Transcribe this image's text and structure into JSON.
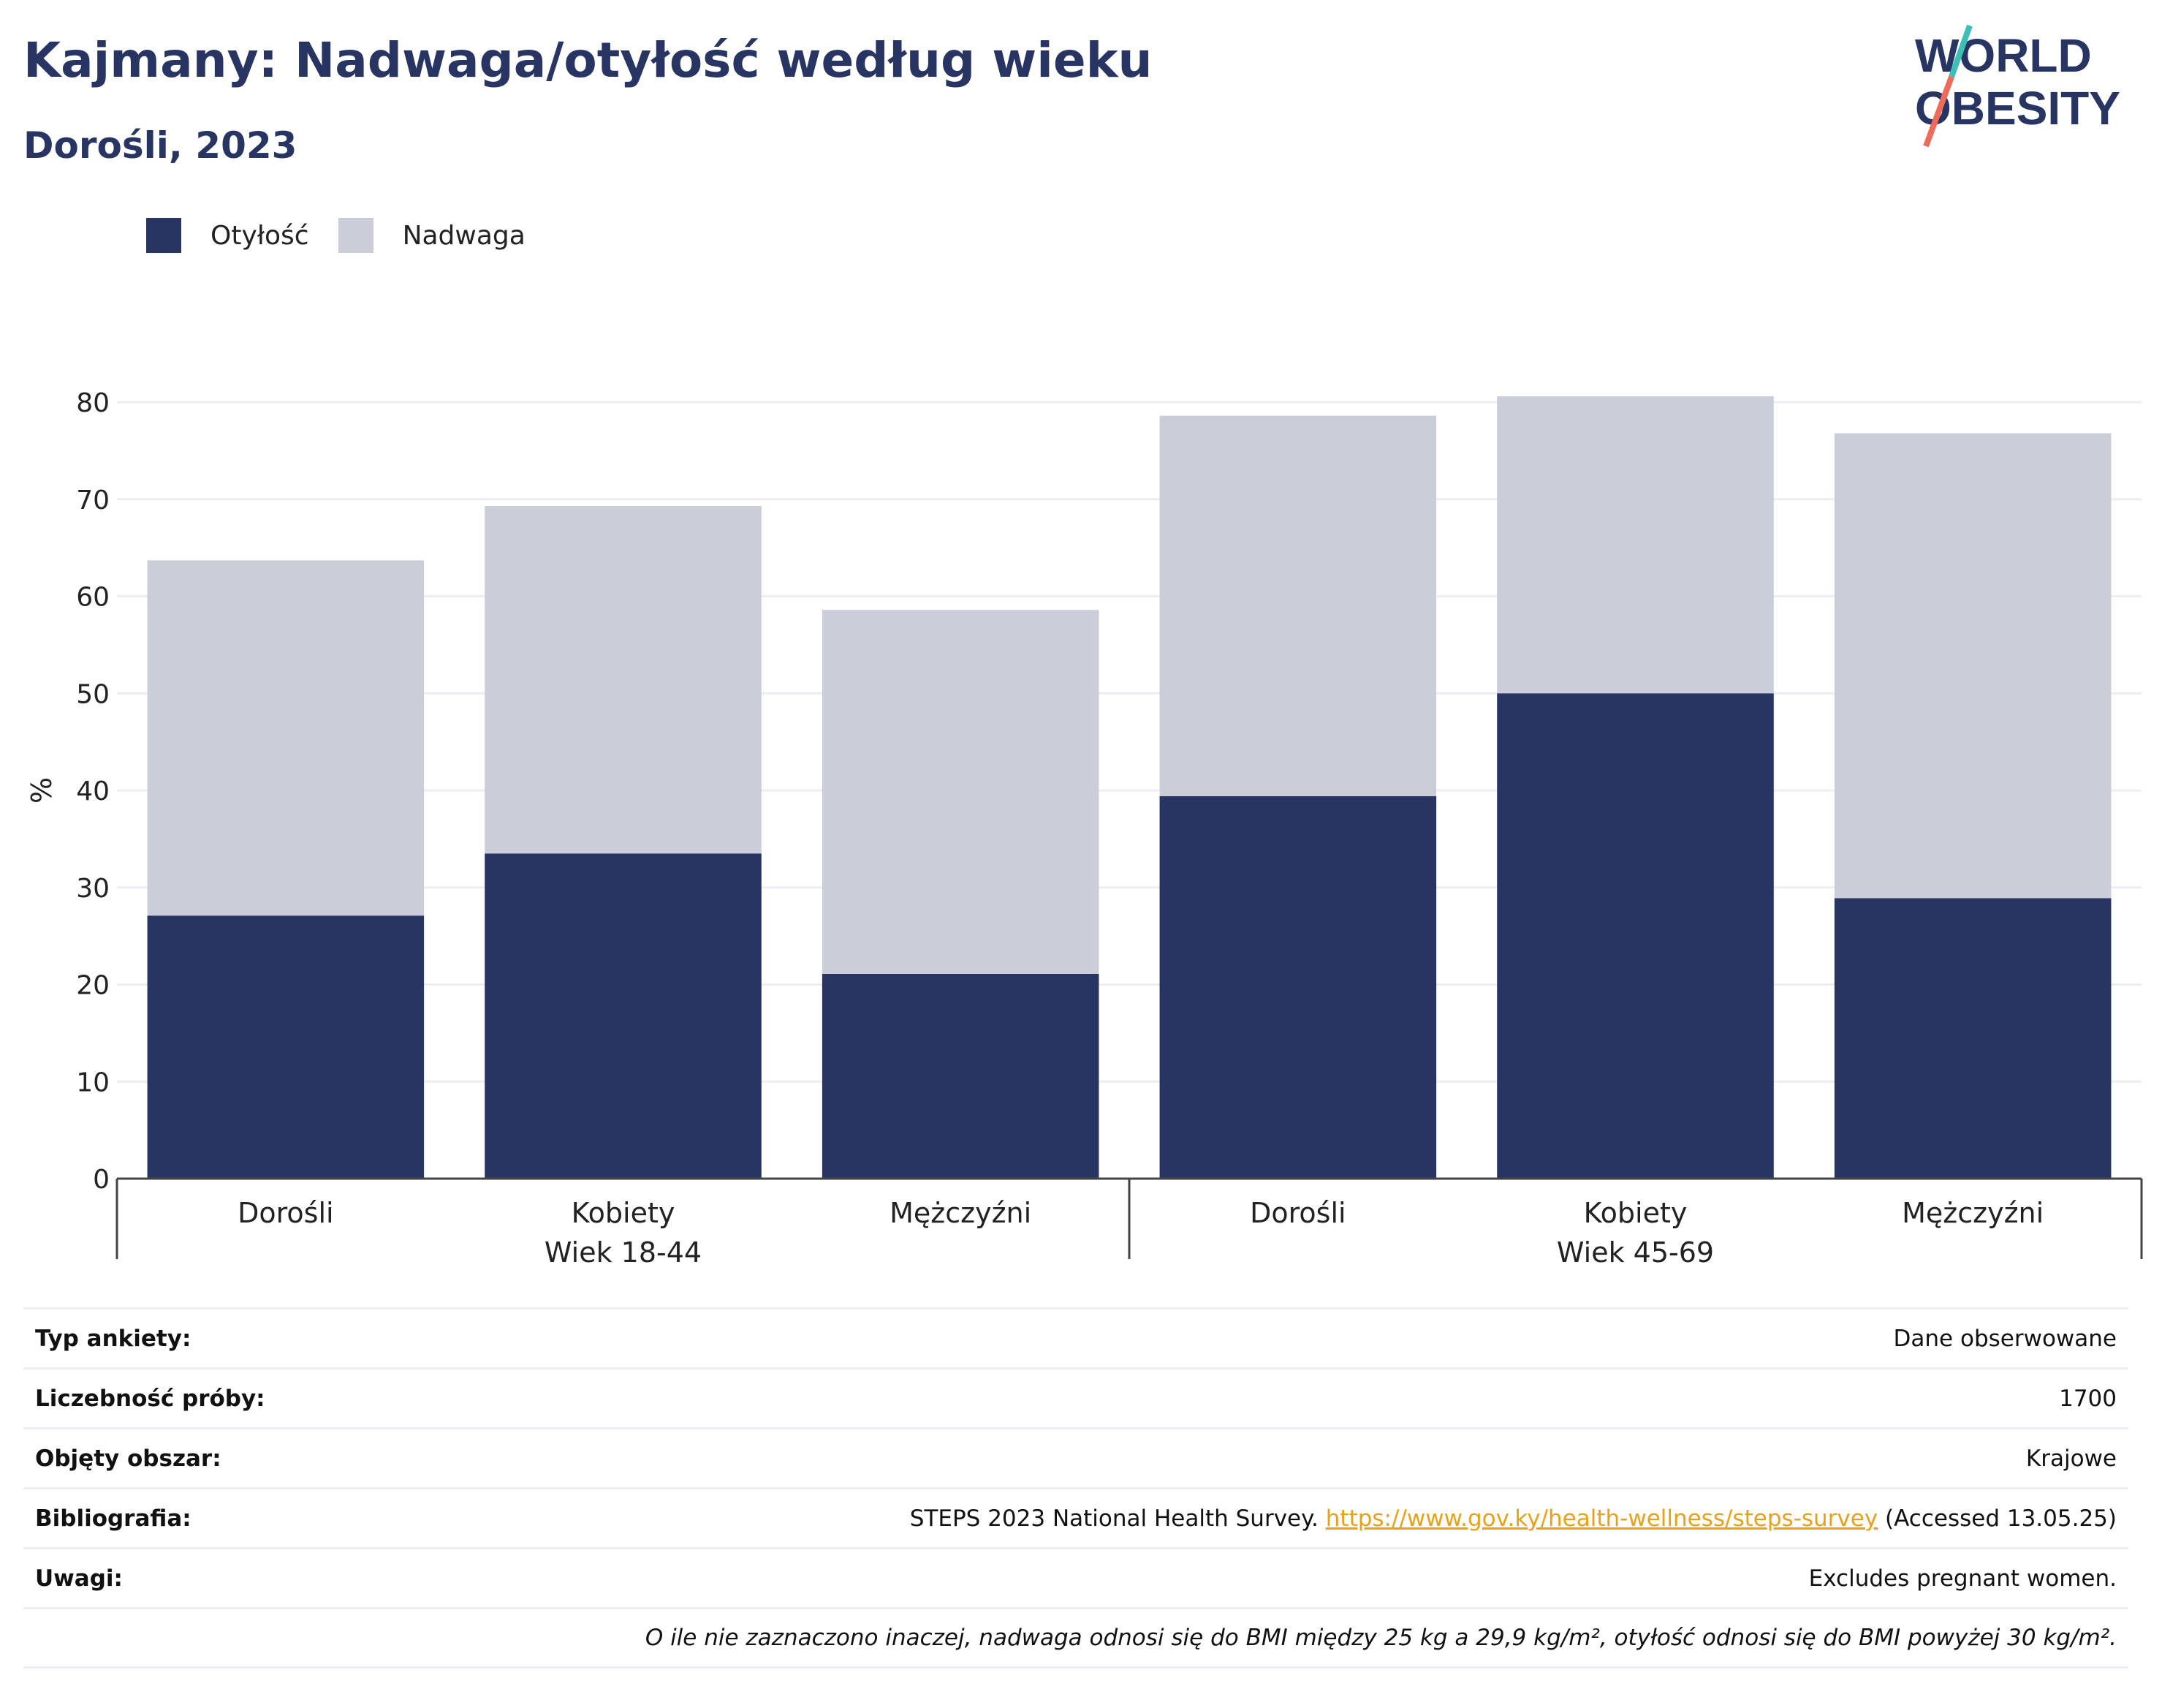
{
  "header": {
    "title": "Kajmany: Nadwaga/otyłość według wieku",
    "subtitle": "Dorośli, 2023",
    "logo_line1": "WORLD",
    "logo_line2": "OBESITY"
  },
  "colors": {
    "obesity": "#283562",
    "overweight": "#cbcdd8",
    "title": "#283562",
    "link": "#e8a21a",
    "logo_teal": "#3dbfb8",
    "logo_coral": "#ee6b5c"
  },
  "legend": [
    {
      "label": "Otyłość",
      "color": "#283562"
    },
    {
      "label": "Nadwaga",
      "color": "#cbcdd8"
    }
  ],
  "chart_data": {
    "type": "bar",
    "stacked": true,
    "ylabel": "%",
    "ylim": [
      0,
      80
    ],
    "yticks": [
      0,
      10,
      20,
      30,
      40,
      50,
      60,
      70,
      80
    ],
    "grid": true,
    "legend_position": "top-left",
    "categories": [
      "Dorośli",
      "Kobiety",
      "Mężczyźni",
      "Dorośli",
      "Kobiety",
      "Mężczyźni"
    ],
    "groups": [
      {
        "label": "Wiek 18-44",
        "categories": [
          "Dorośli",
          "Kobiety",
          "Mężczyźni"
        ]
      },
      {
        "label": "Wiek 45-69",
        "categories": [
          "Dorośli",
          "Kobiety",
          "Mężczyźni"
        ]
      }
    ],
    "series": [
      {
        "name": "Otyłość",
        "values": [
          27.1,
          33.5,
          21.1,
          39.4,
          50.0,
          28.9
        ]
      },
      {
        "name": "Nadwaga",
        "values": [
          36.6,
          35.8,
          37.5,
          39.2,
          30.6,
          47.9
        ]
      }
    ]
  },
  "meta": {
    "rows": [
      {
        "label": "Typ ankiety:",
        "value": "Dane obserwowane"
      },
      {
        "label": "Liczebność próby:",
        "value": "1700"
      },
      {
        "label": "Objęty obszar:",
        "value": "Krajowe"
      }
    ],
    "bibliography": {
      "label": "Bibliografia:",
      "prefix": "STEPS 2023 National Health Survey.",
      "link": "https://www.gov.ky/health-wellness/steps-survey",
      "suffix": "(Accessed 13.05.25)"
    },
    "notes": {
      "label": "Uwagi:",
      "value": "Excludes pregnant women."
    },
    "footnote": "O ile nie zaznaczono inaczej, nadwaga odnosi się do BMI między 25 kg a 29,9 kg/m², otyłość odnosi się do BMI powyżej 30 kg/m²."
  }
}
